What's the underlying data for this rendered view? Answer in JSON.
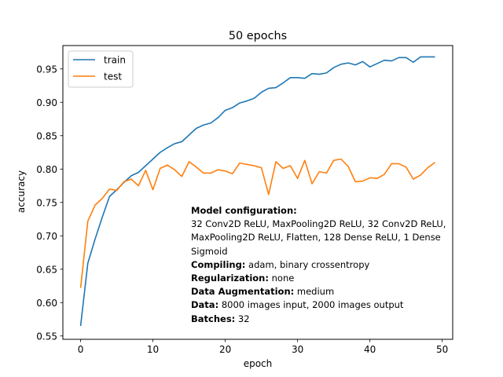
{
  "chart_data": {
    "type": "line",
    "title": "50 epochs",
    "xlabel": "epoch",
    "ylabel": "accuracy",
    "xlim": [
      -2.45,
      51.45
    ],
    "ylim": [
      0.545,
      0.985
    ],
    "xticks": [
      0,
      10,
      20,
      30,
      40,
      50
    ],
    "yticks": [
      0.55,
      0.6,
      0.65,
      0.7,
      0.75,
      0.8,
      0.85,
      0.9,
      0.95
    ],
    "x": [
      0,
      1,
      2,
      3,
      4,
      5,
      6,
      7,
      8,
      9,
      10,
      11,
      12,
      13,
      14,
      15,
      16,
      17,
      18,
      19,
      20,
      21,
      22,
      23,
      24,
      25,
      26,
      27,
      28,
      29,
      30,
      31,
      32,
      33,
      34,
      35,
      36,
      37,
      38,
      39,
      40,
      41,
      42,
      43,
      44,
      45,
      46,
      47,
      48,
      49
    ],
    "series": [
      {
        "name": "train",
        "color": "#1f77b4",
        "values": [
          0.565,
          0.659,
          0.695,
          0.728,
          0.759,
          0.769,
          0.78,
          0.79,
          0.795,
          0.805,
          0.815,
          0.825,
          0.832,
          0.838,
          0.841,
          0.851,
          0.861,
          0.866,
          0.869,
          0.877,
          0.888,
          0.892,
          0.899,
          0.902,
          0.906,
          0.915,
          0.921,
          0.922,
          0.929,
          0.937,
          0.937,
          0.936,
          0.943,
          0.942,
          0.944,
          0.952,
          0.957,
          0.959,
          0.956,
          0.961,
          0.953,
          0.958,
          0.963,
          0.962,
          0.967,
          0.967,
          0.96,
          0.968,
          0.968,
          0.968
        ]
      },
      {
        "name": "test",
        "color": "#ff7f0e",
        "values": [
          0.622,
          0.722,
          0.746,
          0.756,
          0.77,
          0.768,
          0.781,
          0.785,
          0.775,
          0.798,
          0.769,
          0.801,
          0.806,
          0.799,
          0.789,
          0.811,
          0.803,
          0.794,
          0.794,
          0.799,
          0.797,
          0.793,
          0.809,
          0.807,
          0.805,
          0.802,
          0.762,
          0.811,
          0.801,
          0.805,
          0.786,
          0.813,
          0.778,
          0.796,
          0.794,
          0.813,
          0.815,
          0.804,
          0.781,
          0.782,
          0.787,
          0.786,
          0.792,
          0.808,
          0.808,
          0.803,
          0.785,
          0.791,
          0.802,
          0.81
        ]
      }
    ],
    "legend": "top-left",
    "grid": false
  },
  "annotation": {
    "model_heading": "Model configuration:",
    "model_text": "32 Conv2D ReLU, MaxPooling2D ReLU, 32 Conv2D ReLU, MaxPooling2D ReLU, Flatten, 128 Dense ReLU, 1 Dense Sigmoid",
    "compiling_label": "Compiling:",
    "compiling_value": " adam, binary crossentropy",
    "regularization_label": "Regularization:",
    "regularization_value": " none",
    "augmentation_label": "Data Augmentation:",
    "augmentation_value": " medium",
    "data_label": "Data:",
    "data_value": " 8000 images input, 2000 images output",
    "batches_label": "Batches:",
    "batches_value": " 32"
  }
}
